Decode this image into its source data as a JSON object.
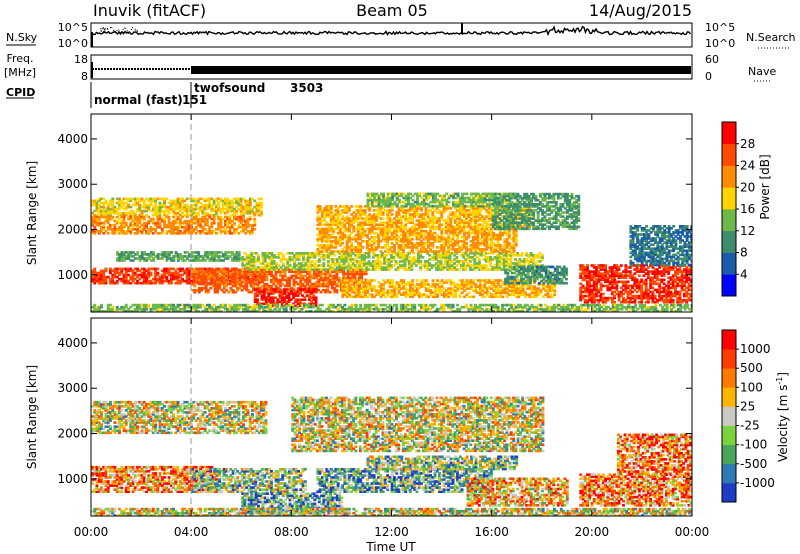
{
  "header": {
    "station": "Inuvik (fitACF)",
    "beam": "Beam 05",
    "date": "14/Aug/2015"
  },
  "sky_panel": {
    "left_label": "N.Sky",
    "right_label": "N.Search",
    "left_ticks": [
      "10^5",
      "10^0"
    ],
    "right_ticks": [
      "10^5",
      "10^0"
    ]
  },
  "freq_panel": {
    "left_label_1": "Freq.",
    "left_label_2": "[MHz]",
    "right_label": "Nave",
    "left_ticks": [
      "18",
      "8"
    ],
    "right_ticks": [
      "60",
      "0"
    ]
  },
  "cpid": {
    "label": "CPID",
    "segments": [
      {
        "name": "normal (fast)",
        "id": "151",
        "start_h": 0,
        "end_h": 4
      },
      {
        "name": "twofsound",
        "id": "3503",
        "start_h": 4,
        "end_h": 24
      }
    ]
  },
  "chart_data": [
    {
      "type": "heatmap",
      "name": "power",
      "ylabel": "Slant Range [km]",
      "ylim": [
        180,
        4550
      ],
      "yticks": [
        1000,
        2000,
        3000,
        4000
      ],
      "xlim": [
        0,
        24
      ],
      "colorbar": {
        "label": "Power [dB]",
        "ticks": [
          "4",
          "8",
          "12",
          "16",
          "20",
          "24",
          "28"
        ],
        "range": [
          0,
          32
        ],
        "colors": [
          "#0000ff",
          "#1a5ca8",
          "#3d8c6e",
          "#6cb84a",
          "#ffd400",
          "#ff8c00",
          "#ff4a00",
          "#ff0000"
        ]
      },
      "bands": [
        {
          "t0": 0,
          "t1": 6.8,
          "r0": 2300,
          "r1": 2700,
          "level": 18
        },
        {
          "t0": 0,
          "t1": 6.5,
          "r0": 1900,
          "r1": 2300,
          "level": 22
        },
        {
          "t0": 0,
          "t1": 7,
          "r0": 800,
          "r1": 1150,
          "level": 27
        },
        {
          "t0": 1,
          "t1": 6,
          "r0": 1300,
          "r1": 1500,
          "level": 12
        },
        {
          "t0": 4,
          "t1": 11,
          "r0": 600,
          "r1": 1100,
          "level": 25
        },
        {
          "t0": 6.5,
          "t1": 9,
          "r0": 300,
          "r1": 700,
          "level": 29
        },
        {
          "t0": 6,
          "t1": 18,
          "r0": 1100,
          "r1": 1500,
          "level": 16
        },
        {
          "t0": 9,
          "t1": 17,
          "r0": 1500,
          "r1": 2000,
          "level": 21
        },
        {
          "t0": 9,
          "t1": 17.5,
          "r0": 2000,
          "r1": 2500,
          "level": 20
        },
        {
          "t0": 11,
          "t1": 17,
          "r0": 2500,
          "r1": 2800,
          "level": 14
        },
        {
          "t0": 10,
          "t1": 18.5,
          "r0": 500,
          "r1": 900,
          "level": 20
        },
        {
          "t0": 16.5,
          "t1": 19,
          "r0": 800,
          "r1": 1200,
          "level": 10
        },
        {
          "t0": 16,
          "t1": 19.5,
          "r0": 2000,
          "r1": 2800,
          "level": 11
        },
        {
          "t0": 19.5,
          "t1": 24,
          "r0": 380,
          "r1": 1200,
          "level": 28
        },
        {
          "t0": 21.5,
          "t1": 24,
          "r0": 1200,
          "r1": 2100,
          "level": 8
        },
        {
          "t0": 0,
          "t1": 24,
          "r0": 180,
          "r1": 330,
          "level": 14
        }
      ]
    },
    {
      "type": "heatmap",
      "name": "velocity",
      "ylabel": "Slant Range [km]",
      "ylim": [
        180,
        4550
      ],
      "yticks": [
        1000,
        2000,
        3000,
        4000
      ],
      "xlim": [
        0,
        24
      ],
      "xticks": [
        "00:00",
        "04:00",
        "08:00",
        "12:00",
        "16:00",
        "20:00",
        "00:00"
      ],
      "xlabel": "Time UT",
      "colorbar": {
        "label": "Velocity [m s^-1]",
        "ticks": [
          "1000",
          "500",
          "100",
          "25",
          "-25",
          "-100",
          "-500",
          "-1000"
        ],
        "colors": [
          "#1e3cc8",
          "#2f7ab4",
          "#4aa55a",
          "#7ad23c",
          "#c8c8c4",
          "#ffb400",
          "#ff7a00",
          "#ff3c00",
          "#ff0000"
        ]
      },
      "bands": [
        {
          "t0": 0,
          "t1": 7,
          "r0": 2000,
          "r1": 2700,
          "level": 4
        },
        {
          "t0": 8,
          "t1": 18,
          "r0": 1600,
          "r1": 2800,
          "level": 4
        },
        {
          "t0": 0,
          "t1": 5,
          "r0": 700,
          "r1": 1250,
          "level": 6
        },
        {
          "t0": 4,
          "t1": 8.5,
          "r0": 700,
          "r1": 1200,
          "level": 3
        },
        {
          "t0": 6,
          "t1": 10,
          "r0": 250,
          "r1": 700,
          "level": 2
        },
        {
          "t0": 9,
          "t1": 16,
          "r0": 700,
          "r1": 1200,
          "level": 2
        },
        {
          "t0": 11,
          "t1": 17,
          "r0": 1200,
          "r1": 1500,
          "level": 3
        },
        {
          "t0": 15,
          "t1": 19,
          "r0": 400,
          "r1": 1000,
          "level": 5
        },
        {
          "t0": 19.5,
          "t1": 24,
          "r0": 400,
          "r1": 1100,
          "level": 6
        },
        {
          "t0": 21,
          "t1": 24,
          "r0": 1100,
          "r1": 2000,
          "level": 6
        },
        {
          "t0": 0,
          "t1": 24,
          "r0": 180,
          "r1": 320,
          "level": 4
        }
      ]
    }
  ]
}
